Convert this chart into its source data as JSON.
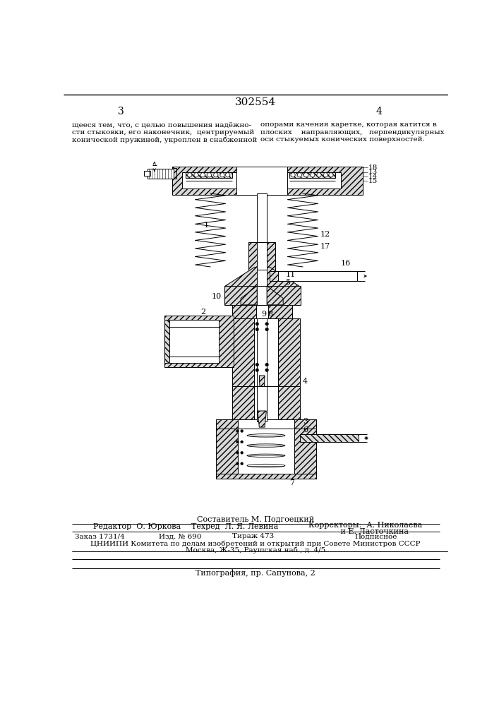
{
  "patent_number": "302554",
  "page_left": "3",
  "page_right": "4",
  "top_text_left": "щееся тем, что, с целью повышения надёжно-\nсти стыковки, его наконечник,  центрируемый\nконической пружиной, укреплен в снабженной",
  "top_text_right": "опорами качения каретке, которая катится в\nплоских    направляющих,   перпендикулярных\nоси стыкуемых конических поверхностей.",
  "bottom_composer": "Составитель М. Подгоецкий",
  "bottom_editor": "Редактор  О. Юркова",
  "bottom_tech": "Техред  Л. Я. Левина",
  "bottom_corr1": "Корректоры:  А. Николаева",
  "bottom_corr2": "             и Е. Ласточкина",
  "bottom_order": "Заказ 1731/4",
  "bottom_izd": "Изд. № 690",
  "bottom_tirazh": "Тираж 473",
  "bottom_podpisnoe": "Подписное",
  "bottom_tsniipi": "ЦНИИПИ Комитета по делам изобретений и открытий при Совете Министров СССР",
  "bottom_moskva": "Москва, Ж-35, Раушская наб., д. 4/5",
  "bottom_tipografia": "Типография, пр. Сапунова, 2",
  "bg_color": "#ffffff",
  "lc": "#000000",
  "hatch_fc": "#d8d8d8",
  "white": "#ffffff",
  "fig_width": 7.07,
  "fig_height": 10.0
}
